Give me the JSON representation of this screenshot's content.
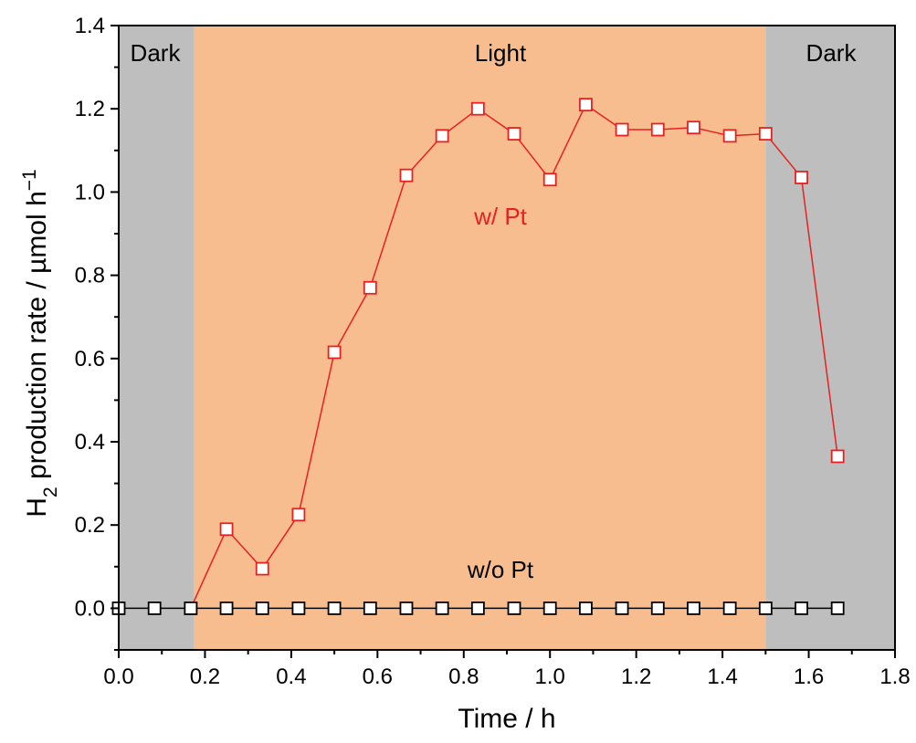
{
  "chart_data": {
    "type": "line",
    "xlabel": "Time / h",
    "ylabel": {
      "main": "H",
      "sub": "2",
      "rest": " production rate / µmol h",
      "sup": "−1"
    },
    "xlim": [
      0.0,
      1.8
    ],
    "ylim": [
      -0.1,
      1.4
    ],
    "xticks": [
      "0.0",
      "0.2",
      "0.4",
      "0.6",
      "0.8",
      "1.0",
      "1.2",
      "1.4",
      "1.6",
      "1.8"
    ],
    "yticks": [
      "0.0",
      "0.2",
      "0.4",
      "0.6",
      "0.8",
      "1.0",
      "1.2",
      "1.4"
    ],
    "grid": false,
    "regions": [
      {
        "label": "Dark",
        "x_start": 0.0,
        "x_end": 0.175,
        "color": "#bebebe"
      },
      {
        "label": "Light",
        "x_start": 0.175,
        "x_end": 1.5,
        "color": "#f7bd8f"
      },
      {
        "label": "Dark",
        "x_start": 1.5,
        "x_end": 1.8,
        "color": "#bebebe"
      }
    ],
    "series": [
      {
        "name": "w/ Pt",
        "color": "#e8201f",
        "marker": "square-open",
        "x": [
          0.167,
          0.25,
          0.333,
          0.417,
          0.5,
          0.583,
          0.667,
          0.75,
          0.833,
          0.917,
          1.0,
          1.083,
          1.167,
          1.25,
          1.333,
          1.417,
          1.5,
          1.583,
          1.667
        ],
        "y": [
          0.0,
          0.19,
          0.095,
          0.225,
          0.615,
          0.77,
          1.04,
          1.135,
          1.2,
          1.14,
          1.03,
          1.21,
          1.15,
          1.15,
          1.155,
          1.135,
          1.14,
          1.035,
          0.365
        ]
      },
      {
        "name": "w/o Pt",
        "color": "#000000",
        "marker": "square-open",
        "x": [
          0.0,
          0.083,
          0.167,
          0.25,
          0.333,
          0.417,
          0.5,
          0.583,
          0.667,
          0.75,
          0.833,
          0.917,
          1.0,
          1.083,
          1.167,
          1.25,
          1.333,
          1.417,
          1.5,
          1.583,
          1.667
        ],
        "y": [
          0.0,
          0.0,
          0.0,
          0.0,
          0.0,
          0.0,
          0.0,
          0.0,
          0.0,
          0.0,
          0.0,
          0.0,
          0.0,
          0.0,
          0.0,
          0.0,
          0.0,
          0.0,
          0.0,
          0.0,
          0.0
        ]
      }
    ]
  }
}
